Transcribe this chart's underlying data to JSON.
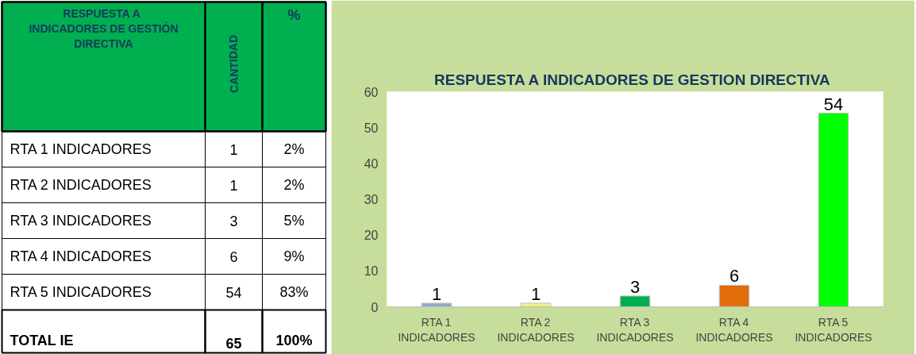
{
  "chart_data": [
    {
      "type": "other",
      "title": "RESPUESTA  A INDICADORES DE GESTIÓN DIRECTIVA",
      "categories": [
        "RTA 1 INDICADORES",
        "RTA 2 INDICADORES",
        "RTA 3 INDICADORES",
        "RTA 4 INDICADORES",
        "RTA 5 INDICADORES",
        "TOTAL IE"
      ],
      "series": [
        {
          "name": "CANTIDAD",
          "values": [
            1,
            1,
            3,
            6,
            54,
            65
          ]
        },
        {
          "name": "%",
          "values": [
            2,
            2,
            5,
            9,
            83,
            100
          ],
          "value_labels": [
            "2%",
            "2%",
            "5%",
            "9%",
            "83%",
            "100%"
          ]
        }
      ],
      "data_labels": true
    },
    {
      "type": "bar",
      "title": "RESPUESTA  A INDICADORES DE GESTION DIRECTIVA",
      "categories": [
        "RTA 1\nINDICADORES",
        "RTA 2\nINDICADORES",
        "RTA 3\nINDICADORES",
        "RTA 4\nINDICADORES",
        "RTA 5\nINDICADORES"
      ],
      "values": [
        1,
        1,
        3,
        6,
        54
      ],
      "colors": [
        "#8eaad0",
        "#f2f28a",
        "#00b050",
        "#e36c0a",
        "#00ff00"
      ],
      "ylim": [
        0,
        60
      ],
      "yticks": [
        0,
        10,
        20,
        30,
        40,
        50,
        60
      ],
      "grid": false,
      "data_labels": true
    }
  ]
}
